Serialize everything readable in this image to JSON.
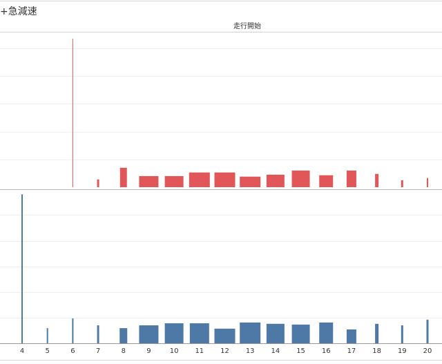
{
  "title": "+急減速",
  "header": "走行開始",
  "chart_data": [
    {
      "type": "bar",
      "color": "#e15759",
      "grid": true,
      "categories": [
        4,
        5,
        6,
        7,
        8,
        9,
        10,
        11,
        12,
        13,
        14,
        15,
        16,
        17,
        18,
        19,
        20
      ],
      "values": [
        null,
        null,
        5.35,
        0.28,
        0.7,
        0.4,
        0.4,
        0.53,
        0.53,
        0.38,
        0.45,
        0.6,
        0.43,
        0.6,
        0.48,
        0.25,
        0.33
      ],
      "sizes": [
        null,
        null,
        1,
        3,
        10,
        28,
        27,
        30,
        30,
        30,
        26,
        26,
        20,
        14,
        5,
        3,
        2
      ],
      "ylim": [
        0,
        5.6
      ],
      "yticks": [
        1,
        2,
        3,
        4,
        5
      ]
    },
    {
      "type": "bar",
      "color": "#4e79a7",
      "grid": true,
      "categories": [
        4,
        5,
        6,
        7,
        8,
        9,
        10,
        11,
        12,
        13,
        14,
        15,
        16,
        17,
        18,
        19,
        20
      ],
      "values": [
        5.81,
        0.59,
        0.97,
        0.7,
        0.59,
        0.7,
        0.78,
        0.78,
        0.57,
        0.81,
        0.76,
        0.73,
        0.81,
        0.54,
        0.76,
        0.7,
        0.92
      ],
      "sizes": [
        2,
        2,
        2,
        3,
        11,
        28,
        27,
        28,
        30,
        30,
        26,
        26,
        20,
        14,
        5,
        3,
        3
      ],
      "ylim": [
        0,
        5.9
      ],
      "yticks": [
        1,
        2,
        3,
        4,
        5
      ]
    }
  ]
}
